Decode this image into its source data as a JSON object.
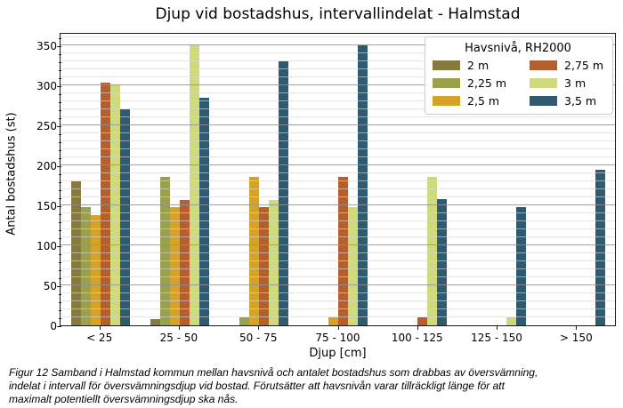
{
  "title": "Djup vid bostadshus, intervallindelat - Halmstad",
  "chart_data": {
    "type": "bar",
    "title": "Djup vid bostadshus, intervallindelat - Halmstad",
    "xlabel": "Djup [cm]",
    "ylabel": "Antal bostadshus (st)",
    "categories": [
      "< 25",
      "25 - 50",
      "50 - 75",
      "75 - 100",
      "100 - 125",
      "125 - 150",
      "> 150"
    ],
    "series": [
      {
        "name": "2 m",
        "color": "#867a3e",
        "values": [
          180,
          8,
          0,
          0,
          0,
          0,
          0
        ]
      },
      {
        "name": "2,25 m",
        "color": "#9aa04b",
        "values": [
          148,
          186,
          10,
          0,
          0,
          0,
          0
        ]
      },
      {
        "name": "2,5 m",
        "color": "#d5a327",
        "values": [
          138,
          148,
          186,
          10,
          0,
          0,
          0
        ]
      },
      {
        "name": "2,75 m",
        "color": "#b55f2e",
        "values": [
          303,
          157,
          148,
          186,
          10,
          0,
          0
        ]
      },
      {
        "name": "3 m",
        "color": "#cfda7d",
        "values": [
          300,
          350,
          157,
          148,
          186,
          10,
          0
        ]
      },
      {
        "name": "3,5 m",
        "color": "#305a70",
        "values": [
          270,
          285,
          330,
          350,
          158,
          148,
          195
        ]
      }
    ],
    "ylim": [
      0,
      366
    ],
    "yticks_major": [
      0,
      50,
      100,
      150,
      200,
      250,
      300,
      350
    ],
    "ytick_minor_step": 10,
    "grid": "horizontal; minor every 10 (light), major every 50 (gray), drawn over bars",
    "legend_title": "Havsnivå, RH2000",
    "legend_position": "upper right",
    "legend_columns": 2
  },
  "legend": {
    "title": "Havsnivå, RH2000"
  },
  "axes": {
    "xlabel": "Djup [cm]",
    "ylabel": "Antal bostadshus (st)"
  },
  "caption": {
    "line1": "Figur 12 Samband i Halmstad kommun mellan havsnivå och antalet bostadshus som drabbas av översvämning,",
    "line2": "indelat i intervall för översvämningsdjup vid bostad. Förutsätter att havsnivån varar tillräckligt länge för att",
    "line3": "maximalt potentiellt översvämningsdjup ska nås."
  }
}
